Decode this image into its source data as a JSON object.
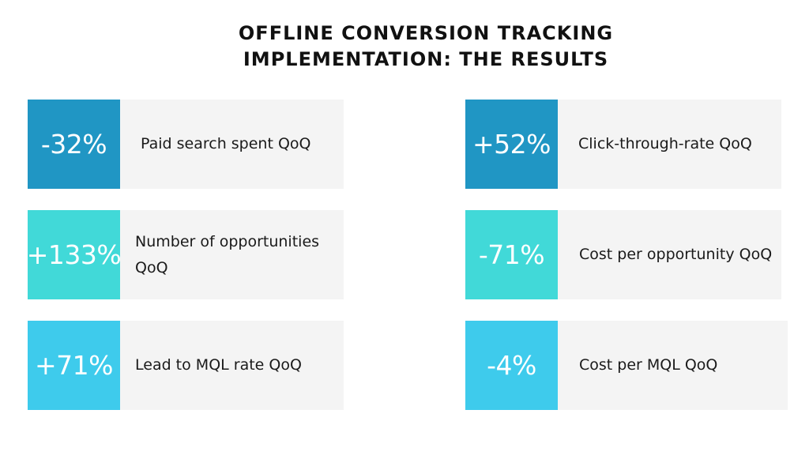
{
  "title": {
    "line1": "OFFLINE CONVERSION TRACKING",
    "line2": "IMPLEMENTATION: THE RESULTS"
  },
  "colors": {
    "row1": "#2096c4",
    "row2": "#41d9d8",
    "row3": "#3ecbec",
    "card_background": "#f4f4f4"
  },
  "metrics": [
    {
      "value": "-32%",
      "label": "Paid search spent QoQ"
    },
    {
      "value": "+52%",
      "label": "Click-through-rate QoQ"
    },
    {
      "value": "+133%",
      "label": "Number of opportunities QoQ"
    },
    {
      "value": "-71%",
      "label": "Cost per opportunity QoQ"
    },
    {
      "value": "+71%",
      "label": "Lead to MQL rate QoQ"
    },
    {
      "value": "-4%",
      "label": "Cost per MQL QoQ"
    }
  ]
}
